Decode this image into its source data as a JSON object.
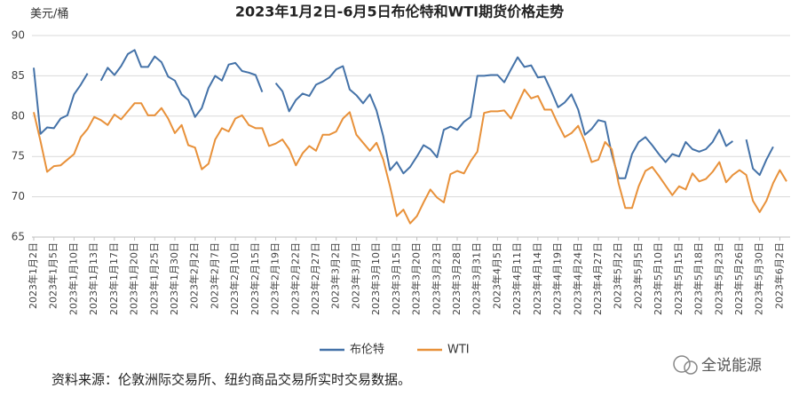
{
  "chart_data": {
    "type": "line",
    "title": "2023年1月2日-6月5日布伦特和WTI期货价格走势",
    "y_label": "美元/桶",
    "note": "资料来源：伦敦洲际交易所、纽约商品交易所实时交易数据。",
    "watermark": "全说能源",
    "ylim": [
      65,
      90
    ],
    "yticks": [
      65,
      70,
      75,
      80,
      85,
      90
    ],
    "grid": true,
    "legend": "bottom",
    "categories": [
      "2023年1月2日",
      null,
      null,
      "2023年1月5日",
      null,
      null,
      "2023年1月10日",
      null,
      null,
      "2023年1月13日",
      null,
      null,
      "2023年1月17日",
      null,
      null,
      "2023年1月20日",
      null,
      null,
      "2023年1月25日",
      null,
      null,
      "2023年1月30日",
      null,
      null,
      "2023年2月2日",
      null,
      null,
      "2023年2月7日",
      null,
      null,
      "2023年2月10日",
      null,
      null,
      "2023年2月15日",
      null,
      null,
      "2023年2月19日",
      null,
      null,
      "2023年2月22日",
      null,
      null,
      "2023年2月27日",
      null,
      null,
      "2023年3月2日",
      null,
      null,
      "2023年3月7日",
      null,
      null,
      "2023年3月10日",
      null,
      null,
      "2023年3月15日",
      null,
      null,
      "2023年3月20日",
      null,
      null,
      "2023年3月23日",
      null,
      null,
      "2023年3月28日",
      null,
      null,
      "2023年3月31日",
      null,
      null,
      "2023年4月5日",
      null,
      null,
      "2023年4月11日",
      null,
      null,
      "2023年4月14日",
      null,
      null,
      "2023年4月19日",
      null,
      null,
      "2023年4月24日",
      null,
      null,
      "2023年4月27日",
      null,
      null,
      "2023年5月2日",
      null,
      null,
      "2023年5月5日",
      null,
      null,
      "2023年5月10日",
      null,
      null,
      "2023年5月15日",
      null,
      null,
      "2023年5月18日",
      null,
      null,
      "2023年5月23日",
      null,
      null,
      "2023年5月26日",
      null,
      null,
      "2023年5月30日",
      null,
      null,
      "2023年6月2日",
      null
    ],
    "series": [
      {
        "name": "布伦特",
        "color": "#4472a8",
        "values": [
          86,
          77.8,
          78.6,
          78.5,
          79.7,
          80.1,
          82.7,
          83.9,
          85.3,
          null,
          84.4,
          86,
          85.1,
          86.2,
          87.7,
          88.2,
          86.1,
          86.1,
          87.4,
          86.7,
          84.9,
          84.4,
          82.7,
          82,
          79.9,
          81,
          83.5,
          85,
          84.4,
          86.4,
          86.6,
          85.6,
          85.4,
          85.1,
          83,
          null,
          84.1,
          83.1,
          80.6,
          82,
          82.8,
          82.5,
          83.9,
          84.3,
          84.8,
          85.8,
          86.2,
          83.3,
          82.6,
          81.6,
          82.7,
          80.7,
          77.5,
          73.3,
          74.3,
          72.9,
          73.7,
          75,
          76.4,
          75.9,
          74.9,
          78.3,
          78.7,
          78.3,
          79.3,
          79.9,
          85,
          85,
          85.1,
          85.1,
          84.2,
          85.8,
          87.3,
          86.1,
          86.3,
          84.8,
          84.9,
          83.1,
          81.1,
          81.7,
          82.7,
          80.8,
          77.7,
          78.4,
          79.5,
          79.3,
          75.3,
          72.3,
          72.3,
          75.3,
          76.8,
          77.4,
          76.4,
          75.3,
          74.3,
          75.3,
          75,
          76.8,
          75.9,
          75.6,
          75.9,
          76.8,
          78.3,
          76.3,
          76.9,
          null,
          77.1,
          73.5,
          72.7,
          74.6,
          76.2,
          null,
          null
        ]
      },
      {
        "name": "WTI",
        "color": "#e8913a",
        "values": [
          80.5,
          76.9,
          73.1,
          73.8,
          73.9,
          74.6,
          75.3,
          77.4,
          78.4,
          79.9,
          79.5,
          78.9,
          80.2,
          79.6,
          80.6,
          81.6,
          81.6,
          80.1,
          80.1,
          81,
          79.7,
          77.9,
          78.9,
          76.4,
          76.1,
          73.4,
          74.1,
          77.1,
          78.5,
          78.1,
          79.7,
          80.1,
          78.9,
          78.5,
          78.5,
          76.3,
          76.6,
          77.1,
          75.9,
          73.9,
          75.4,
          76.3,
          75.7,
          77.7,
          77.7,
          78.1,
          79.7,
          80.5,
          77.7,
          76.7,
          75.7,
          76.7,
          74.6,
          71.3,
          67.6,
          68.4,
          66.7,
          67.6,
          69.3,
          70.9,
          69.9,
          69.3,
          72.8,
          73.2,
          72.9,
          74.4,
          75.6,
          80.4,
          80.6,
          80.6,
          80.7,
          79.7,
          81.5,
          83.3,
          82.2,
          82.5,
          80.8,
          80.8,
          79,
          77.4,
          77.9,
          78.8,
          76.8,
          74.3,
          74.6,
          76.8,
          75.9,
          71.7,
          68.6,
          68.6,
          71.3,
          73.2,
          73.7,
          72.6,
          71.4,
          70.2,
          71.3,
          70.9,
          72.9,
          71.9,
          72.2,
          73.1,
          74.3,
          71.8,
          72.7,
          73.3,
          72.7,
          69.5,
          68.1,
          69.5,
          71.7,
          73.3,
          71.9
        ]
      }
    ]
  }
}
